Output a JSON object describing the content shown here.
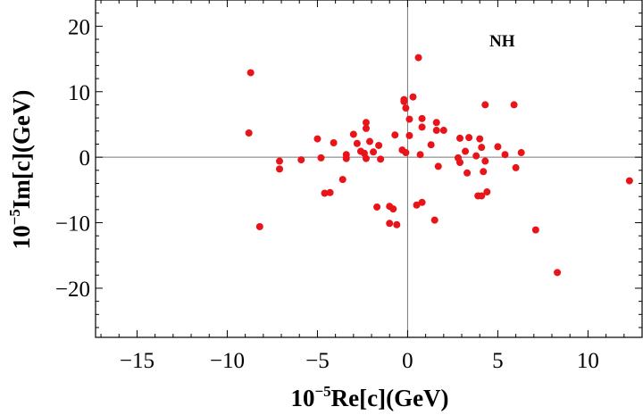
{
  "chart_data": {
    "type": "scatter",
    "title": "",
    "annotation": "NH",
    "xlabel": {
      "prefix": "10",
      "sup": "−5",
      "main": "Re[c](GeV)"
    },
    "ylabel": {
      "prefix": "10",
      "sup": "−5",
      "main": "Im[c](GeV)"
    },
    "xlim": [
      -17.3,
      13
    ],
    "ylim": [
      -27.5,
      24
    ],
    "xticks": [
      -15,
      -10,
      -5,
      0,
      5,
      10
    ],
    "xtick_labels": [
      "−15",
      "−10",
      "−5",
      "0",
      "5",
      "10"
    ],
    "yticks": [
      -20,
      -10,
      0,
      10,
      20
    ],
    "ytick_labels": [
      "−20",
      "−10",
      "0",
      "10",
      "20"
    ],
    "grid": false,
    "zero_lines": true,
    "marker_color": "#e8141a",
    "points": [
      [
        -8.7,
        12.9
      ],
      [
        -8.8,
        3.7
      ],
      [
        -8.2,
        -10.6
      ],
      [
        -7.1,
        -0.6
      ],
      [
        -7.1,
        -1.8
      ],
      [
        -5.9,
        -0.4
      ],
      [
        -5.0,
        2.8
      ],
      [
        -4.8,
        -0.1
      ],
      [
        -4.6,
        -5.5
      ],
      [
        -4.3,
        -5.4
      ],
      [
        -4.1,
        2.2
      ],
      [
        -3.6,
        -3.4
      ],
      [
        -3.4,
        0.4
      ],
      [
        -3.4,
        -0.2
      ],
      [
        -3.0,
        3.5
      ],
      [
        -2.8,
        2.1
      ],
      [
        -2.6,
        0.9
      ],
      [
        -2.4,
        0.6
      ],
      [
        -2.3,
        4.4
      ],
      [
        -2.3,
        5.3
      ],
      [
        -2.3,
        -0.2
      ],
      [
        -2.1,
        2.4
      ],
      [
        -1.9,
        0.8
      ],
      [
        -1.7,
        -7.6
      ],
      [
        -1.6,
        1.8
      ],
      [
        -1.5,
        -0.3
      ],
      [
        -1.0,
        -7.5
      ],
      [
        -1.0,
        -10.1
      ],
      [
        -0.8,
        -7.9
      ],
      [
        -0.7,
        3.4
      ],
      [
        -0.6,
        -10.3
      ],
      [
        -0.3,
        1.1
      ],
      [
        -0.2,
        8.8
      ],
      [
        -0.2,
        8.5
      ],
      [
        -0.1,
        0.7
      ],
      [
        -0.1,
        7.5
      ],
      [
        0.1,
        3.3
      ],
      [
        0.1,
        5.8
      ],
      [
        0.3,
        9.2
      ],
      [
        0.5,
        -7.3
      ],
      [
        0.6,
        15.2
      ],
      [
        0.7,
        0.4
      ],
      [
        0.8,
        4.6
      ],
      [
        0.8,
        5.9
      ],
      [
        0.8,
        -6.9
      ],
      [
        1.3,
        1.9
      ],
      [
        1.5,
        -9.6
      ],
      [
        1.6,
        4.1
      ],
      [
        1.6,
        5.3
      ],
      [
        1.7,
        -1.4
      ],
      [
        2.0,
        4.1
      ],
      [
        2.9,
        2.9
      ],
      [
        2.8,
        -0.1
      ],
      [
        2.9,
        -0.8
      ],
      [
        3.2,
        0.9
      ],
      [
        3.3,
        -2.4
      ],
      [
        3.4,
        3.0
      ],
      [
        3.8,
        0.2
      ],
      [
        3.9,
        -5.9
      ],
      [
        4.0,
        2.8
      ],
      [
        4.1,
        1.5
      ],
      [
        4.1,
        -5.9
      ],
      [
        4.2,
        -2.2
      ],
      [
        4.3,
        -0.6
      ],
      [
        4.3,
        8.0
      ],
      [
        4.4,
        -5.3
      ],
      [
        5.0,
        1.6
      ],
      [
        5.4,
        0.4
      ],
      [
        5.9,
        8.0
      ],
      [
        6.0,
        -1.6
      ],
      [
        6.3,
        0.7
      ],
      [
        7.1,
        -11.1
      ],
      [
        8.3,
        -17.6
      ],
      [
        12.3,
        -3.6
      ]
    ]
  }
}
